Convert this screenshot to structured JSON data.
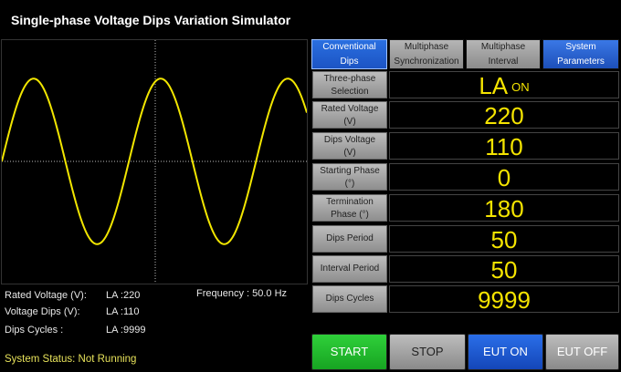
{
  "window": {
    "title": "Single-phase Voltage Dips Variation Simulator"
  },
  "tabs": [
    {
      "line1": "Conventional",
      "line2": "Dips"
    },
    {
      "line1": "Multiphase",
      "line2": "Synchronization"
    },
    {
      "line1": "Multiphase",
      "line2": "Interval"
    },
    {
      "line1": "System",
      "line2": "Parameters"
    }
  ],
  "params": [
    {
      "label1": "Three-phase",
      "label2": "Selection",
      "value": "LA",
      "value_sub": "ON"
    },
    {
      "label1": "Rated Voltage",
      "label2": "(V)",
      "value": "220"
    },
    {
      "label1": "Dips Voltage",
      "label2": "(V)",
      "value": "110"
    },
    {
      "label1": "Starting Phase",
      "label2": "(°)",
      "value": "0"
    },
    {
      "label1": "Termination",
      "label2": "Phase (°)",
      "value": "180"
    },
    {
      "label1": "Dips Period",
      "label2": "",
      "value": "50"
    },
    {
      "label1": "Interval Period",
      "label2": "",
      "value": "50"
    },
    {
      "label1": "Dips Cycles",
      "label2": "",
      "value": "9999"
    }
  ],
  "info": {
    "rated_label": "Rated Voltage (V):",
    "rated_value": "LA :220",
    "dips_label": "Voltage Dips  (V):",
    "dips_value": "LA :110",
    "cycles_label": "Dips Cycles :",
    "cycles_value": "LA :9999",
    "frequency": "Frequency : 50.0 Hz"
  },
  "status": "System Status: Not Running",
  "buttons": {
    "start": "START",
    "stop": "STOP",
    "eut_on": "EUT ON",
    "eut_off": "EUT OFF"
  },
  "waveform": {
    "color": "#f2e600",
    "cycles_shown": 2.4,
    "amplitude_fraction": 0.68
  },
  "colors": {
    "accent_blue": "#2a6fe0",
    "value_yellow": "#f5e400",
    "status_yellow": "#e6e15a",
    "start_green": "#2fd03a"
  }
}
